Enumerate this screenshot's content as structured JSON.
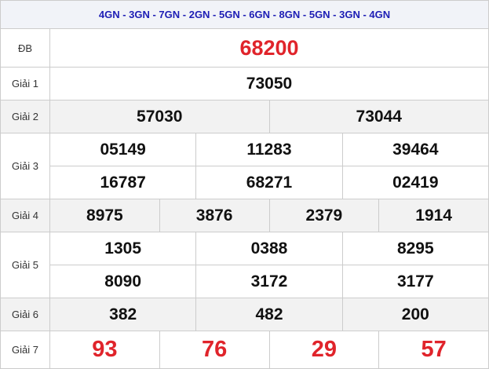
{
  "header": "4GN - 3GN - 7GN - 2GN - 5GN - 6GN - 8GN - 5GN - 3GN - 4GN",
  "prizes": [
    {
      "label": "ĐB",
      "rows": [
        [
          "68200"
        ]
      ]
    },
    {
      "label": "Giải 1",
      "rows": [
        [
          "73050"
        ]
      ]
    },
    {
      "label": "Giải 2",
      "rows": [
        [
          "57030",
          "73044"
        ]
      ]
    },
    {
      "label": "Giải 3",
      "rows": [
        [
          "05149",
          "11283",
          "39464"
        ],
        [
          "16787",
          "68271",
          "02419"
        ]
      ]
    },
    {
      "label": "Giải 4",
      "rows": [
        [
          "8975",
          "3876",
          "2379",
          "1914"
        ]
      ]
    },
    {
      "label": "Giải 5",
      "rows": [
        [
          "1305",
          "0388",
          "8295"
        ],
        [
          "8090",
          "3172",
          "3177"
        ]
      ]
    },
    {
      "label": "Giải 6",
      "rows": [
        [
          "382",
          "482",
          "200"
        ]
      ]
    },
    {
      "label": "Giải 7",
      "rows": [
        [
          "93",
          "76",
          "29",
          "57"
        ]
      ]
    }
  ]
}
